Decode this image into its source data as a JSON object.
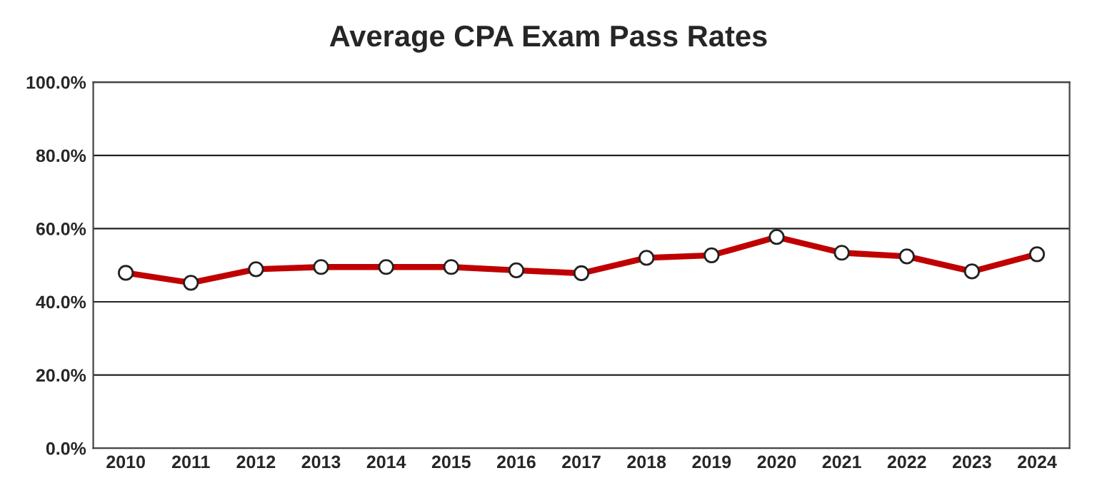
{
  "chart_data": {
    "type": "line",
    "title": "Average CPA Exam Pass Rates",
    "categories": [
      "2010",
      "2011",
      "2012",
      "2013",
      "2014",
      "2015",
      "2016",
      "2017",
      "2018",
      "2019",
      "2020",
      "2021",
      "2022",
      "2023",
      "2024"
    ],
    "series": [
      {
        "color": "#c00000",
        "values": [
          47.9,
          45.2,
          48.9,
          49.5,
          49.5,
          49.5,
          48.6,
          47.8,
          52.0,
          52.7,
          57.7,
          53.4,
          52.4,
          48.3,
          53.0
        ]
      }
    ],
    "ylim": [
      0,
      100
    ],
    "yticks": [
      {
        "value": 0,
        "label": "0.0%"
      },
      {
        "value": 20,
        "label": "20.0%"
      },
      {
        "value": 40,
        "label": "40.0%"
      },
      {
        "value": 60,
        "label": "60.0%"
      },
      {
        "value": 80,
        "label": "80.0%"
      },
      {
        "value": 100,
        "label": "100.0%"
      }
    ],
    "grid": "y",
    "marker": "circle",
    "line_style": "solid",
    "legend": false
  }
}
